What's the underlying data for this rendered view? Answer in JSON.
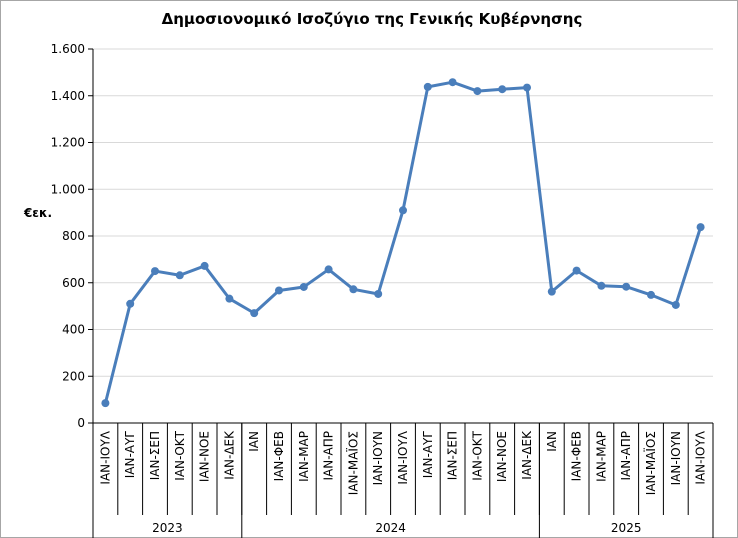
{
  "chart_data": {
    "type": "line",
    "title": "Δημοσιονομικό Ισοζύγιο της Γενικής Κυβέρνησης",
    "y_label": "€εκ.",
    "groups": [
      {
        "label": "2023",
        "categories": [
          "ΙΑΝ-ΙΟΥΛ",
          "ΙΑΝ-ΑΥΓ",
          "ΙΑΝ-ΣΕΠ",
          "ΙΑΝ-ΟΚΤ",
          "ΙΑΝ-ΝΟΕ",
          "ΙΑΝ-ΔΕΚ"
        ]
      },
      {
        "label": "2024",
        "categories": [
          "ΙΑΝ",
          "ΙΑΝ-ΦΕΒ",
          "ΙΑΝ-ΜΑΡ",
          "ΙΑΝ-ΑΠΡ",
          "ΙΑΝ-ΜΑΪΟΣ",
          "ΙΑΝ-ΙΟΥΝ",
          "ΙΑΝ-ΙΟΥΛ",
          "ΙΑΝ-ΑΥΓ",
          "ΙΑΝ-ΣΕΠ",
          "ΙΑΝ-ΟΚΤ",
          "ΙΑΝ-ΝΟΕ",
          "ΙΑΝ-ΔΕΚ"
        ]
      },
      {
        "label": "2025",
        "categories": [
          "ΙΑΝ",
          "ΙΑΝ-ΦΕΒ",
          "ΙΑΝ-ΜΑΡ",
          "ΙΑΝ-ΑΠΡ",
          "ΙΑΝ-ΜΑΪΟΣ",
          "ΙΑΝ-ΙΟΥΝ",
          "ΙΑΝ-ΙΟΥΛ"
        ]
      }
    ],
    "values": [
      85,
      510,
      650,
      632,
      672,
      532,
      470,
      567,
      582,
      657,
      572,
      552,
      910,
      1438,
      1458,
      1420,
      1428,
      1435,
      562,
      652,
      587,
      583,
      548,
      505,
      838
    ],
    "color": "#4a7ebb",
    "ylim": [
      0,
      1600
    ],
    "yticks": [
      0,
      200,
      400,
      600,
      800,
      {
        "value": 1000,
        "label": "1.000"
      },
      {
        "value": 1200,
        "label": "1.200"
      },
      {
        "value": 1400,
        "label": "1.400"
      },
      {
        "value": 1600,
        "label": "1.600"
      }
    ],
    "grid": true
  }
}
